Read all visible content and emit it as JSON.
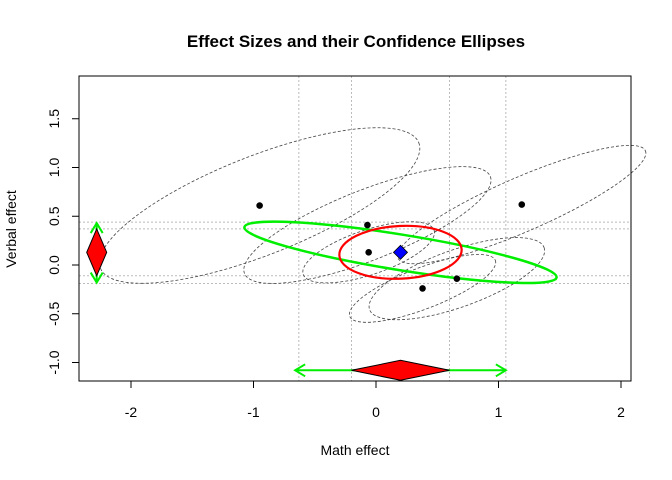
{
  "chart_data": {
    "type": "scatter",
    "title": "Effect Sizes and their Confidence Ellipses",
    "xlabel": "Math effect",
    "ylabel": "Verbal effect",
    "xlim": [
      -2.0,
      2.0
    ],
    "ylim": [
      -1.0,
      1.5
    ],
    "x_ticks": [
      {
        "value": -2,
        "label": "-2"
      },
      {
        "value": -1,
        "label": "-1"
      },
      {
        "value": 0,
        "label": "0"
      },
      {
        "value": 1,
        "label": "1"
      },
      {
        "value": 2,
        "label": "2"
      }
    ],
    "y_ticks": [
      {
        "value": -1.0,
        "label": "-1.0"
      },
      {
        "value": -0.5,
        "label": "-0.5"
      },
      {
        "value": 0.0,
        "label": "0.0"
      },
      {
        "value": 0.5,
        "label": "0.5"
      },
      {
        "value": 1.0,
        "label": "1.0"
      },
      {
        "value": 1.5,
        "label": "1.5"
      }
    ],
    "grid": {
      "x": [
        -0.63,
        -0.2,
        0.6,
        1.06
      ],
      "y": [
        -0.19,
        -0.11,
        0.37,
        0.44
      ]
    },
    "points": [
      {
        "x": -0.95,
        "y": 0.61
      },
      {
        "x": -0.07,
        "y": 0.41
      },
      {
        "x": -0.06,
        "y": 0.13
      },
      {
        "x": 0.38,
        "y": -0.24
      },
      {
        "x": 0.66,
        "y": -0.14
      },
      {
        "x": 1.19,
        "y": 0.62
      }
    ],
    "summary_point": {
      "x": 0.2,
      "y": 0.13,
      "color": "#0000ff"
    },
    "study_ellipses": [
      {
        "cx": -0.95,
        "cy": 0.61,
        "rx": 1.45,
        "ry": 0.48,
        "angle": 0.46
      },
      {
        "cx": -0.07,
        "cy": 0.41,
        "rx": 1.12,
        "ry": 0.34,
        "angle": 0.46
      },
      {
        "cx": -0.06,
        "cy": 0.13,
        "rx": 0.58,
        "ry": 0.22,
        "angle": 0.4
      },
      {
        "cx": 0.38,
        "cy": -0.24,
        "rx": 0.66,
        "ry": 0.2,
        "angle": 0.45
      },
      {
        "cx": 0.66,
        "cy": -0.14,
        "rx": 0.78,
        "ry": 0.28,
        "angle": 0.42
      },
      {
        "cx": 1.19,
        "cy": 0.62,
        "rx": 1.15,
        "ry": 0.26,
        "angle": 0.5
      }
    ],
    "confidence_ellipse": {
      "cx": 0.2,
      "cy": 0.13,
      "rx": 0.5,
      "ry": 0.27,
      "angle": 0.06,
      "color": "#ff0000"
    },
    "prediction_ellipse": {
      "cx": 0.2,
      "cy": 0.13,
      "rx": 1.3,
      "ry": 0.18,
      "angle": -0.2,
      "color": "#00ee00"
    },
    "x_marginal": {
      "center": 0.2,
      "ci": [
        -0.2,
        0.6
      ],
      "pi": [
        -0.66,
        1.06
      ],
      "y_level": -1.08
    },
    "y_marginal": {
      "center": 0.13,
      "ci": [
        -0.11,
        0.37
      ],
      "pi": [
        -0.18,
        0.43
      ],
      "x_level": -2.28
    }
  }
}
